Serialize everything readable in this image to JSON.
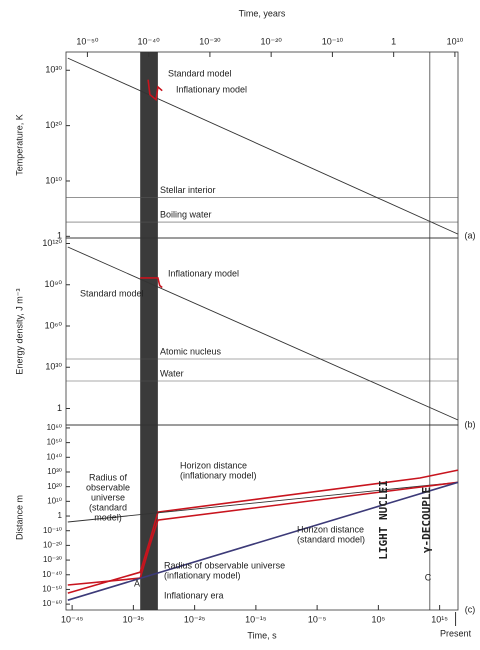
{
  "chart_data": [
    {
      "type": "line",
      "log": true,
      "x2label": "Time, years",
      "x2lim": [
        3.2e-54,
        32000000000.0
      ],
      "x2ticks": [
        {
          "value": 1e-50,
          "label": "10⁻⁵⁰"
        },
        {
          "value": 1e-40,
          "label": "10⁻⁴⁰"
        },
        {
          "value": 1e-30,
          "label": "10⁻³⁰"
        },
        {
          "value": 1e-20,
          "label": "10⁻²⁰"
        },
        {
          "value": 1e-10,
          "label": "10⁻¹⁰"
        },
        1,
        {
          "value": 10000000000.0,
          "label": "10¹⁰"
        }
      ],
      "ylabel": "Temperature, K",
      "xlim": [
        1e-46,
        1e+18
      ],
      "ylim": [
        0.5,
        2e+33
      ],
      "yticks": [
        1,
        {
          "value": 10000000000.0,
          "label": "10¹⁰"
        },
        {
          "value": 1e+20,
          "label": "10²⁰"
        },
        {
          "value": 1e+30,
          "label": "10³⁰"
        }
      ],
      "series": [
        {
          "color": "#333333",
          "x": [
            2e-46,
            1e+18
          ],
          "values": [
            1.6e+32,
            2.5
          ]
        },
        {
          "color": "#c8141e",
          "x": [
            2.5e-33,
            5e-33,
            5e-32,
            1e-31,
            5e-31
          ],
          "values": [
            2e+28,
            4e+25,
            5e+24,
            1e+27,
            2e+26
          ]
        }
      ],
      "hlines": [
        {
          "label": "Stellar interior",
          "value": 10000000.0
        },
        {
          "label": "Boiling water",
          "value": 373
        }
      ],
      "annotations": [
        [
          "Standard model"
        ],
        [
          "Inflationary model"
        ],
        [
          "(a)"
        ]
      ]
    },
    {
      "type": "line",
      "log": true,
      "ylabel": "Energy density, J m⁻³",
      "xlim": [
        1e-46,
        1e+18
      ],
      "ylim": [
        1e-12,
        1e+124
      ],
      "yticks": [
        1,
        {
          "value": 1e+30,
          "label": "10³⁰"
        },
        {
          "value": 1e+60,
          "label": "10⁶⁰"
        },
        {
          "value": 1e+90,
          "label": "10⁹⁰"
        },
        {
          "value": 1e+120,
          "label": "10¹²⁰"
        }
      ],
      "series": [
        {
          "color": "#333333",
          "x": [
            2e-46,
            1e+18
          ],
          "values": [
            3e+117,
            4e-09
          ]
        },
        {
          "color": "#c8141e",
          "x": [
            1.3e-34,
            1e-31,
            2e-31,
            5e-31
          ],
          "values": [
            1e+95,
            1e+95,
            3e+89,
            1e+88
          ]
        }
      ],
      "hlines": [
        {
          "label": "Atomic nucleus",
          "value": 1e+36
        },
        {
          "label": "Water",
          "value": 1e+20
        }
      ],
      "annotations": [
        [
          "Inflationary model"
        ],
        [
          "Standard model"
        ],
        [
          "(b)"
        ]
      ]
    },
    {
      "type": "line",
      "log": true,
      "ylabel": "Distance m",
      "xlabel": "Time, s",
      "xlim": [
        1e-46,
        1e+18
      ],
      "ylim": [
        1e-64,
        1e+62
      ],
      "xticks": [
        {
          "value": 1e-45,
          "label": "10⁻⁴⁵"
        },
        {
          "value": 1e-35,
          "label": "10⁻³⁵"
        },
        {
          "value": 1e-25,
          "label": "10⁻²⁵"
        },
        {
          "value": 1e-15,
          "label": "10⁻¹⁵"
        },
        {
          "value": 1e-05,
          "label": "10⁻⁵"
        },
        {
          "value": 100000.0,
          "label": "10⁵"
        },
        {
          "value": 1000000000000000.0,
          "label": "10¹⁵"
        }
      ],
      "yticks": [
        {
          "value": 1e+60,
          "label": "10⁶⁰"
        },
        {
          "value": 1e+50,
          "label": "10⁵⁰"
        },
        {
          "value": 1e+40,
          "label": "10⁴⁰"
        },
        {
          "value": 1e+30,
          "label": "10³⁰"
        },
        {
          "value": 1e+20,
          "label": "10²⁰"
        },
        {
          "value": 10000000000.0,
          "label": "10¹⁰"
        },
        1,
        {
          "value": 1e-10,
          "label": "10⁻¹⁰"
        },
        {
          "value": 1e-20,
          "label": "10⁻²⁰"
        },
        {
          "value": 1e-30,
          "label": "10⁻³⁰"
        },
        {
          "value": 1e-40,
          "label": "10⁻⁴⁰"
        },
        {
          "value": 1e-50,
          "label": "10⁻⁵⁰"
        },
        {
          "value": 1e-60,
          "label": "10⁻⁶⁰"
        }
      ],
      "series": [
        {
          "color": "#c8141e",
          "x": [
            2e-46,
            1.3e-34,
            5e-33,
            1e-31,
            600000000000.0,
            1e+18
          ],
          "values": [
            3e-53,
            6e-39,
            4e-17,
            500,
            8e+25,
            2e+31
          ]
        },
        {
          "color": "#333333",
          "x": [
            2e-46,
            1e+18
          ],
          "values": [
            8e-05,
            1e+23
          ]
        },
        {
          "color": "#c8141e",
          "x": [
            2e-46,
            1.3e-34,
            5e-33,
            1e-31,
            1e+18
          ],
          "values": [
            1e-47,
            5e-43,
            1.6e-20,
            0.0016,
            1e+23
          ]
        },
        {
          "color": "#3c3a78",
          "x": [
            2e-46,
            1e+18
          ],
          "values": [
            5e-58,
            1e+23
          ]
        }
      ],
      "band": [
        1.3e-34,
        1e-31
      ],
      "vlines": [
        25000000000000.0
      ],
      "present": 4e+17,
      "present_label": "Present",
      "annotations": [
        [
          "Horizon distance",
          "(inflationary model)"
        ],
        [
          "Radius of",
          "observable",
          "universe",
          "(standard",
          "model)"
        ],
        [
          "Horizon distance",
          "(standard model)"
        ],
        [
          "Radius of observable universe",
          "(inflationary model)"
        ],
        [
          "Inflationary era"
        ],
        [
          "A"
        ],
        [
          "C"
        ],
        [
          "LIGHT NUCLEI"
        ],
        [
          "γ-DECOUPLE"
        ],
        [
          "(c)"
        ]
      ]
    }
  ]
}
